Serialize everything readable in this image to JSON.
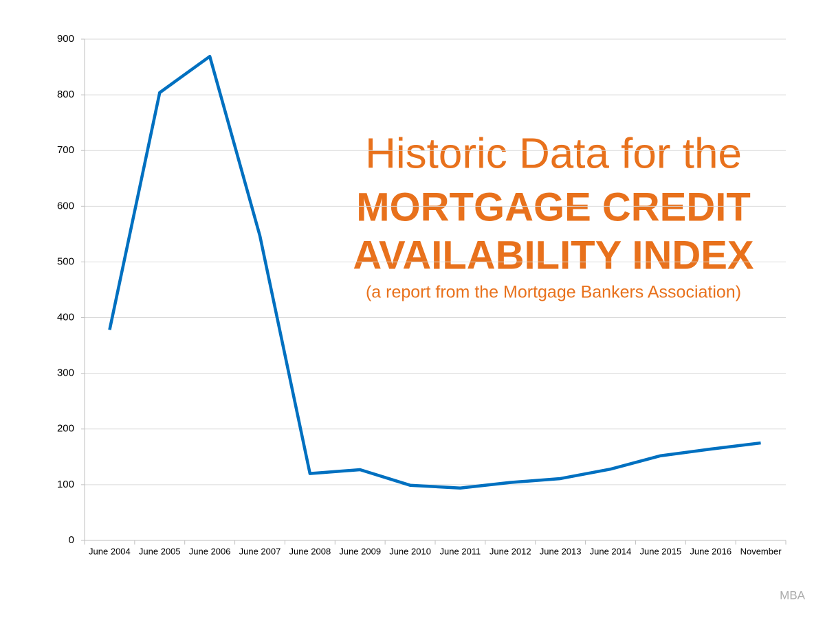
{
  "chart_data": {
    "type": "line",
    "title": [
      "Historic Data for the",
      "MORTGAGE CREDIT",
      "AVAILABILITY INDEX"
    ],
    "subtitle": "(a report from the Mortgage Bankers Association)",
    "source": "MBA",
    "categories": [
      "June 2004",
      "June 2005",
      "June 2006",
      "June 2007",
      "June 2008",
      "June 2009",
      "June 2010",
      "June 2011",
      "June 2012",
      "June 2013",
      "June 2014",
      "June 2015",
      "June 2016",
      "November"
    ],
    "values": [
      378,
      804,
      869,
      547,
      120,
      127,
      99,
      94,
      104,
      111,
      128,
      152,
      164,
      175
    ],
    "color": "#0070c0",
    "title_color": "#e8711c",
    "ylim": [
      0,
      900
    ],
    "yticks": [
      0,
      100,
      200,
      300,
      400,
      500,
      600,
      700,
      800,
      900
    ],
    "grid": true
  }
}
